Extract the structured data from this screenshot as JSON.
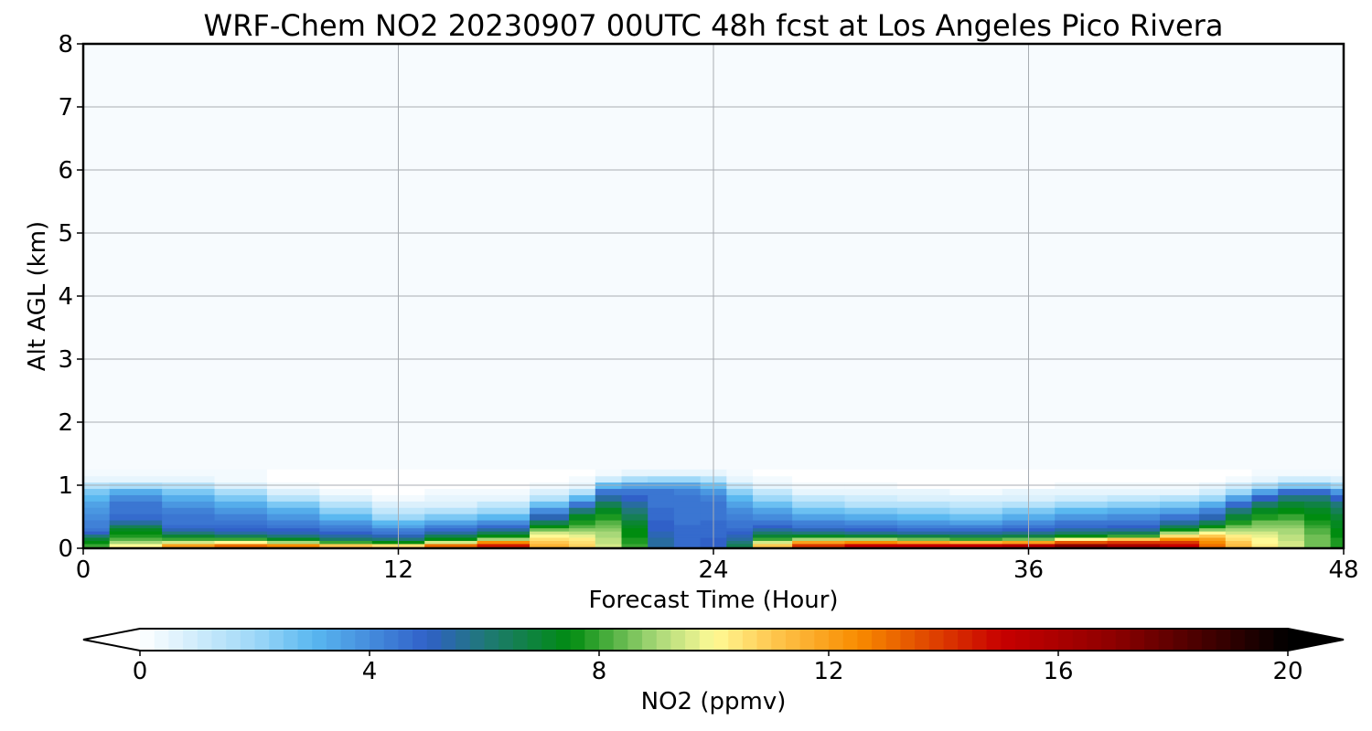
{
  "chart_data": {
    "type": "heatmap",
    "title": "WRF-Chem NO2  20230907 00UTC 48h fcst at Los Angeles Pico Rivera",
    "xlabel": "Forecast Time (Hour)",
    "ylabel": "Alt AGL (km)",
    "xlim": [
      0,
      48
    ],
    "ylim": [
      0,
      8
    ],
    "xticks": [
      0,
      12,
      24,
      36,
      48
    ],
    "yticks": [
      0,
      1,
      2,
      3,
      4,
      5,
      6,
      7,
      8
    ],
    "xtick_labels": [
      "0",
      "12",
      "24",
      "36",
      "48"
    ],
    "ytick_labels": [
      "0",
      "1",
      "2",
      "3",
      "4",
      "5",
      "6",
      "7",
      "8"
    ],
    "grid": true,
    "colorbar": {
      "label": "NO2  (ppmv)",
      "orientation": "horizontal",
      "placement": "bottom",
      "range": [
        0,
        20
      ],
      "extend": "both",
      "ticks": [
        0,
        4,
        8,
        12,
        16,
        20
      ],
      "tick_labels": [
        "0",
        "4",
        "8",
        "12",
        "16",
        "20"
      ],
      "stops": [
        {
          "value": 0,
          "color": "#ffffff"
        },
        {
          "value": 2,
          "color": "#9ed8f8"
        },
        {
          "value": 3,
          "color": "#5ab8f0"
        },
        {
          "value": 5,
          "color": "#3060c8"
        },
        {
          "value": 6,
          "color": "#207878"
        },
        {
          "value": 7.5,
          "color": "#008c10"
        },
        {
          "value": 9,
          "color": "#a8d878"
        },
        {
          "value": 10,
          "color": "#fffa96"
        },
        {
          "value": 11,
          "color": "#ffc850"
        },
        {
          "value": 12.5,
          "color": "#f88c00"
        },
        {
          "value": 15,
          "color": "#c80000"
        },
        {
          "value": 17,
          "color": "#8c0000"
        },
        {
          "value": 19,
          "color": "#300000"
        },
        {
          "value": 20,
          "color": "#000000"
        }
      ]
    },
    "field": {
      "x_hours": [
        0,
        2,
        4,
        6,
        8,
        10,
        12,
        14,
        16,
        18,
        19,
        20,
        21,
        22,
        23,
        24,
        25,
        26,
        28,
        30,
        32,
        34,
        36,
        38,
        40,
        42,
        43,
        44,
        45,
        46,
        47,
        48
      ],
      "z_km": [
        0,
        0.05,
        0.1,
        0.15,
        0.2,
        0.25,
        0.3,
        0.35,
        0.4,
        0.5,
        0.6,
        0.7,
        0.8,
        0.9,
        1.0,
        1.1,
        1.2
      ],
      "no2_ppmv": [
        [
          9.0,
          8.0,
          7.6,
          7.0,
          6.0,
          5.0,
          4.5,
          4.3,
          4.2,
          4.0,
          3.7,
          3.4,
          3.0,
          2.5,
          1.5,
          0.6,
          0.3
        ],
        [
          11.5,
          10.0,
          9.0,
          8.2,
          7.8,
          7.6,
          7.2,
          6.5,
          5.5,
          4.8,
          4.6,
          4.4,
          4.0,
          3.2,
          1.8,
          0.6,
          0.3
        ],
        [
          13.0,
          12.0,
          9.5,
          8.0,
          7.0,
          6.0,
          5.2,
          4.8,
          4.6,
          4.4,
          4.2,
          3.8,
          3.3,
          2.6,
          1.5,
          0.5,
          0.3
        ],
        [
          14.0,
          13.0,
          10.0,
          8.0,
          6.5,
          5.5,
          5.0,
          4.7,
          4.5,
          4.2,
          3.8,
          3.2,
          2.5,
          1.8,
          0.8,
          0.3,
          0.2
        ],
        [
          14.5,
          12.5,
          9.0,
          7.2,
          6.0,
          5.3,
          4.9,
          4.6,
          4.3,
          3.8,
          3.2,
          2.4,
          1.6,
          0.8,
          0.3,
          0.1,
          0.0
        ],
        [
          14.5,
          11.0,
          8.0,
          6.2,
          5.4,
          5.0,
          4.6,
          4.2,
          3.8,
          3.0,
          2.2,
          1.4,
          0.7,
          0.3,
          0.1,
          0.0,
          0.0
        ],
        [
          15.0,
          10.5,
          7.5,
          6.0,
          5.2,
          4.6,
          4.2,
          3.6,
          3.0,
          2.0,
          1.3,
          0.7,
          0.3,
          0.1,
          0.0,
          0.0,
          0.0
        ],
        [
          15.5,
          13.0,
          9.5,
          7.5,
          6.4,
          5.5,
          4.8,
          4.2,
          3.5,
          2.4,
          1.5,
          0.8,
          0.4,
          0.2,
          0.1,
          0.0,
          0.0
        ],
        [
          16.0,
          14.5,
          12.5,
          9.0,
          7.5,
          6.5,
          5.6,
          4.8,
          4.0,
          3.0,
          2.0,
          1.2,
          0.6,
          0.3,
          0.1,
          0.0,
          0.0
        ],
        [
          12.0,
          11.5,
          11.0,
          10.5,
          10.0,
          9.5,
          8.5,
          7.5,
          6.5,
          5.2,
          4.0,
          2.8,
          1.6,
          0.8,
          0.3,
          0.1,
          0.0
        ],
        [
          11.0,
          10.8,
          10.5,
          10.2,
          9.8,
          9.2,
          8.8,
          8.2,
          7.8,
          7.2,
          6.0,
          4.5,
          3.0,
          1.6,
          0.6,
          0.2,
          0.1
        ],
        [
          9.5,
          9.4,
          9.3,
          9.2,
          9.1,
          9.0,
          8.8,
          8.5,
          8.2,
          7.8,
          7.3,
          6.5,
          5.5,
          4.5,
          3.0,
          1.0,
          0.3
        ],
        [
          8.0,
          7.9,
          7.8,
          7.7,
          7.6,
          7.5,
          7.4,
          7.2,
          7.0,
          6.6,
          6.0,
          5.5,
          5.0,
          4.6,
          3.5,
          1.8,
          0.5
        ],
        [
          5.5,
          5.5,
          5.4,
          5.4,
          5.3,
          5.2,
          5.1,
          5.0,
          4.9,
          4.8,
          4.7,
          4.6,
          4.5,
          4.4,
          3.6,
          2.0,
          0.6
        ],
        [
          4.8,
          4.8,
          4.8,
          4.8,
          4.7,
          4.7,
          4.7,
          4.7,
          4.6,
          4.6,
          4.6,
          4.5,
          4.4,
          4.3,
          3.6,
          2.0,
          0.6
        ],
        [
          5.0,
          5.0,
          4.9,
          4.9,
          4.8,
          4.8,
          4.8,
          4.7,
          4.7,
          4.6,
          4.5,
          4.4,
          4.2,
          3.8,
          2.8,
          1.4,
          0.4
        ],
        [
          6.5,
          6.5,
          6.0,
          5.6,
          5.3,
          5.0,
          4.8,
          4.6,
          4.5,
          4.3,
          4.0,
          3.6,
          3.0,
          2.2,
          1.2,
          0.5,
          0.2
        ],
        [
          12.0,
          11.0,
          9.5,
          8.0,
          7.0,
          6.2,
          5.6,
          5.0,
          4.6,
          4.0,
          3.5,
          2.8,
          2.0,
          1.2,
          0.6,
          0.2,
          0.1
        ],
        [
          15.5,
          14.0,
          12.0,
          9.0,
          7.2,
          6.0,
          5.2,
          4.6,
          4.2,
          3.6,
          2.8,
          2.0,
          1.2,
          0.6,
          0.3,
          0.1,
          0.0
        ],
        [
          16.5,
          15.0,
          12.5,
          9.0,
          7.0,
          5.8,
          5.0,
          4.5,
          4.0,
          3.2,
          2.4,
          1.6,
          0.9,
          0.4,
          0.2,
          0.0,
          0.0
        ],
        [
          16.5,
          15.0,
          12.0,
          8.5,
          6.8,
          5.6,
          4.8,
          4.3,
          3.8,
          3.0,
          2.2,
          1.4,
          0.8,
          0.4,
          0.1,
          0.0,
          0.0
        ],
        [
          16.5,
          15.0,
          11.5,
          8.0,
          6.6,
          5.5,
          4.7,
          4.2,
          3.6,
          2.8,
          2.0,
          1.2,
          0.7,
          0.3,
          0.1,
          0.0,
          0.0
        ],
        [
          17.0,
          15.5,
          12.0,
          8.5,
          6.8,
          5.7,
          4.9,
          4.4,
          3.9,
          3.2,
          2.4,
          1.5,
          0.8,
          0.4,
          0.1,
          0.0,
          0.0
        ],
        [
          19.5,
          17.0,
          13.5,
          10.0,
          7.6,
          6.2,
          5.4,
          4.8,
          4.4,
          3.8,
          3.0,
          2.0,
          1.1,
          0.5,
          0.2,
          0.0,
          0.0
        ],
        [
          18.0,
          16.0,
          14.0,
          11.0,
          8.0,
          6.5,
          5.6,
          5.0,
          4.6,
          4.0,
          3.2,
          2.2,
          1.2,
          0.5,
          0.2,
          0.0,
          0.0
        ],
        [
          16.0,
          15.0,
          14.0,
          12.5,
          10.5,
          9.0,
          7.5,
          6.5,
          5.5,
          4.4,
          3.5,
          2.5,
          1.4,
          0.6,
          0.2,
          0.0,
          0.0
        ],
        [
          13.5,
          13.0,
          12.5,
          12.0,
          11.0,
          10.0,
          8.8,
          7.6,
          6.5,
          5.2,
          4.2,
          3.2,
          2.0,
          1.0,
          0.4,
          0.1,
          0.0
        ],
        [
          11.5,
          11.2,
          11.0,
          10.6,
          10.2,
          9.6,
          9.0,
          8.4,
          7.8,
          7.0,
          6.0,
          4.8,
          3.5,
          2.0,
          0.9,
          0.3,
          0.1
        ],
        [
          10.5,
          10.3,
          10.1,
          9.9,
          9.7,
          9.4,
          9.1,
          8.8,
          8.4,
          7.8,
          7.2,
          6.2,
          5.0,
          3.6,
          1.8,
          0.6,
          0.2
        ],
        [
          9.6,
          9.5,
          9.4,
          9.3,
          9.2,
          9.1,
          8.9,
          8.7,
          8.4,
          8.0,
          7.6,
          7.0,
          6.0,
          4.8,
          2.6,
          0.9,
          0.3
        ],
        [
          8.6,
          8.6,
          8.5,
          8.5,
          8.4,
          8.3,
          8.2,
          8.0,
          7.8,
          7.6,
          7.3,
          6.8,
          6.0,
          4.8,
          2.6,
          0.9,
          0.3
        ],
        [
          7.8,
          7.8,
          7.8,
          7.7,
          7.6,
          7.5,
          7.4,
          7.3,
          7.2,
          7.0,
          6.6,
          6.0,
          5.0,
          3.8,
          2.0,
          0.7,
          0.2
        ]
      ]
    }
  }
}
